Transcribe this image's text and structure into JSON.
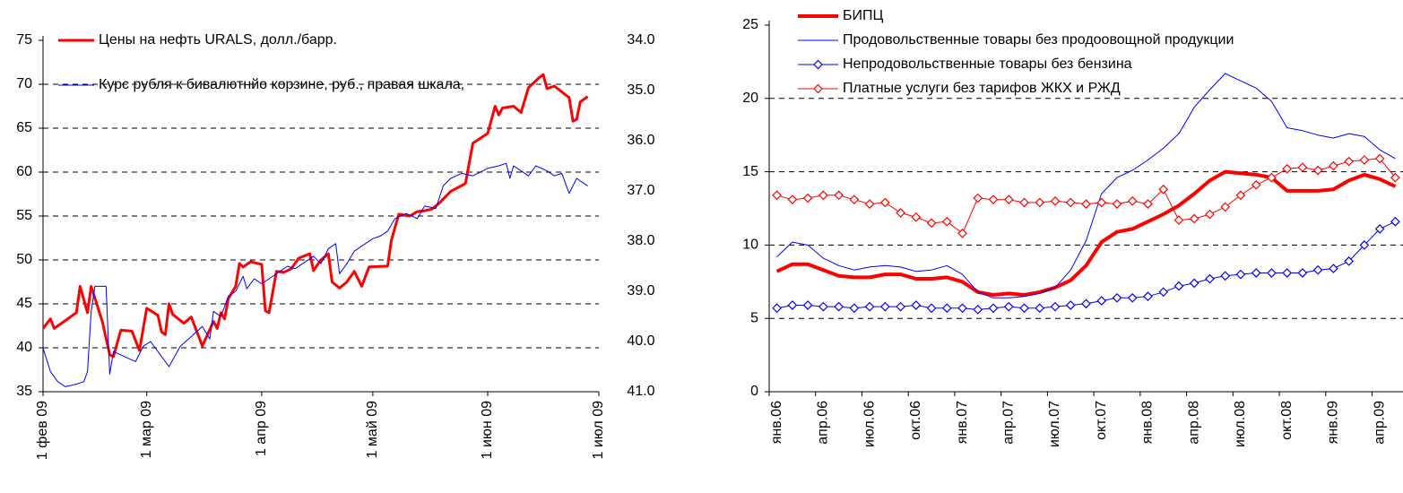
{
  "chart_data": [
    {
      "type": "line",
      "xlim": [
        "2009-02-01",
        "2009-07-01"
      ],
      "xticks": [
        {
          "value": "2009-02-01",
          "label": "1 фев 09"
        },
        {
          "value": "2009-03-01",
          "label": "1 мар 09"
        },
        {
          "value": "2009-04-01",
          "label": "1 апр 09"
        },
        {
          "value": "2009-05-01",
          "label": "1 май 09"
        },
        {
          "value": "2009-06-01",
          "label": "1 июн 09"
        },
        {
          "value": "2009-07-01",
          "label": "1 июл 09"
        }
      ],
      "ylim": [
        35,
        75
      ],
      "yticks": [
        35,
        40,
        45,
        50,
        55,
        60,
        65,
        70,
        75
      ],
      "y2lim": [
        41,
        34
      ],
      "y2ticks": [
        {
          "value": 34,
          "label": "34.0"
        },
        {
          "value": 35,
          "label": "35.0"
        },
        {
          "value": 36,
          "label": "36.0"
        },
        {
          "value": 37,
          "label": "37.0"
        },
        {
          "value": 38,
          "label": "38.0"
        },
        {
          "value": 39,
          "label": "39.0"
        },
        {
          "value": 40,
          "label": "40.0"
        },
        {
          "value": 41,
          "label": "41.0"
        }
      ],
      "grid": true,
      "legend": "top-left",
      "series": [
        {
          "name": "Цены на нефть URALS, долл./барр.",
          "color": "#ff0000",
          "line_width": 3,
          "x": [
            "2009-02-01",
            "2009-02-03",
            "2009-02-04",
            "2009-02-06",
            "2009-02-10",
            "2009-02-11",
            "2009-02-13",
            "2009-02-14",
            "2009-02-17",
            "2009-02-19",
            "2009-02-20",
            "2009-02-22",
            "2009-02-25",
            "2009-02-27",
            "2009-03-01",
            "2009-03-04",
            "2009-03-05",
            "2009-03-06",
            "2009-03-07",
            "2009-03-08",
            "2009-03-11",
            "2009-03-13",
            "2009-03-16",
            "2009-03-19",
            "2009-03-20",
            "2009-03-21",
            "2009-03-22",
            "2009-03-23",
            "2009-03-25",
            "2009-03-26",
            "2009-03-27",
            "2009-03-29",
            "2009-04-01",
            "2009-04-02",
            "2009-04-03",
            "2009-04-05",
            "2009-04-07",
            "2009-04-09",
            "2009-04-11",
            "2009-04-14",
            "2009-04-15",
            "2009-04-17",
            "2009-04-19",
            "2009-04-20",
            "2009-04-22",
            "2009-04-24",
            "2009-04-26",
            "2009-04-28",
            "2009-04-30",
            "2009-05-05",
            "2009-05-06",
            "2009-05-08",
            "2009-05-11",
            "2009-05-13",
            "2009-05-15",
            "2009-05-17",
            "2009-05-19",
            "2009-05-22",
            "2009-05-26",
            "2009-05-28",
            "2009-06-01",
            "2009-06-03",
            "2009-06-04",
            "2009-06-05",
            "2009-06-08",
            "2009-06-10",
            "2009-06-12",
            "2009-06-15",
            "2009-06-16",
            "2009-06-17",
            "2009-06-19",
            "2009-06-22",
            "2009-06-23",
            "2009-06-24",
            "2009-06-25",
            "2009-06-26",
            "2009-06-28"
          ],
          "values": [
            42.2,
            43.3,
            42.2,
            42.8,
            44,
            47,
            44,
            47,
            43,
            39.2,
            39,
            42,
            41.9,
            39.7,
            44.5,
            43.7,
            41.8,
            41.5,
            45,
            43.8,
            42.8,
            43.5,
            40.2,
            43,
            42.2,
            44,
            43.3,
            45.6,
            47,
            49.6,
            49.2,
            49.8,
            49.5,
            44.2,
            44,
            48.7,
            48.6,
            49,
            50.2,
            50.7,
            48.8,
            50,
            50.7,
            47.5,
            46.8,
            47.5,
            48.7,
            47,
            49.2,
            49.3,
            52.2,
            55.2,
            55,
            55.5,
            55.6,
            55.8,
            56.5,
            57.8,
            58.7,
            63.3,
            64.4,
            67.5,
            66.5,
            67.3,
            67.5,
            66.8,
            69.6,
            70.8,
            71.1,
            69.5,
            69.8,
            68.8,
            68.5,
            65.8,
            66,
            68,
            68.6
          ]
        },
        {
          "name": "Курс рубля к бивалютнйо корзине, руб., правая шкала,",
          "color": "#0000ff",
          "line_width": 1,
          "axis": "y2",
          "x": [
            "2009-02-01",
            "2009-02-03",
            "2009-02-05",
            "2009-02-07",
            "2009-02-10",
            "2009-02-12",
            "2009-02-13",
            "2009-02-14",
            "2009-02-15",
            "2009-02-18",
            "2009-02-19",
            "2009-02-20",
            "2009-02-23",
            "2009-02-26",
            "2009-02-28",
            "2009-03-02",
            "2009-03-05",
            "2009-03-07",
            "2009-03-10",
            "2009-03-13",
            "2009-03-16",
            "2009-03-18",
            "2009-03-19",
            "2009-03-21",
            "2009-03-23",
            "2009-03-25",
            "2009-03-27",
            "2009-03-28",
            "2009-03-30",
            "2009-04-01",
            "2009-04-03",
            "2009-04-06",
            "2009-04-08",
            "2009-04-10",
            "2009-04-13",
            "2009-04-15",
            "2009-04-17",
            "2009-04-19",
            "2009-04-21",
            "2009-04-22",
            "2009-04-24",
            "2009-04-26",
            "2009-04-28",
            "2009-05-01",
            "2009-05-03",
            "2009-05-05",
            "2009-05-07",
            "2009-05-10",
            "2009-05-13",
            "2009-05-15",
            "2009-05-18",
            "2009-05-20",
            "2009-05-22",
            "2009-05-25",
            "2009-05-28",
            "2009-06-01",
            "2009-06-04",
            "2009-06-06",
            "2009-06-07",
            "2009-06-08",
            "2009-06-10",
            "2009-06-12",
            "2009-06-14",
            "2009-06-17",
            "2009-06-19",
            "2009-06-21",
            "2009-06-23",
            "2009-06-25",
            "2009-06-27",
            "2009-06-28"
          ],
          "values": [
            40.13,
            40.6,
            40.8,
            40.9,
            40.85,
            40.8,
            40.6,
            39.4,
            38.9,
            38.9,
            40.65,
            40.2,
            40.3,
            40.4,
            40.1,
            40,
            40.3,
            40.5,
            40.1,
            39.9,
            39.7,
            39.95,
            39.4,
            39.5,
            39.1,
            39,
            38.7,
            38.95,
            38.75,
            38.85,
            38.75,
            38.6,
            38.5,
            38.55,
            38.4,
            38.3,
            38.45,
            38.15,
            38.05,
            38.65,
            38.45,
            38.2,
            38.1,
            37.95,
            37.9,
            37.8,
            37.55,
            37.45,
            37.55,
            37.3,
            37.35,
            36.9,
            36.75,
            36.65,
            36.7,
            36.55,
            36.5,
            36.45,
            36.75,
            36.5,
            36.6,
            36.7,
            36.5,
            36.6,
            36.7,
            36.65,
            37.05,
            36.75,
            36.85,
            36.9
          ]
        }
      ]
    },
    {
      "type": "line",
      "categories": [
        "янв.06",
        null,
        null,
        "апр.06",
        null,
        null,
        "июл.06",
        null,
        null,
        "окт.06",
        null,
        null,
        "янв.07",
        null,
        null,
        "апр.07",
        null,
        null,
        "июл.07",
        null,
        null,
        "окт.07",
        null,
        null,
        "янв.08",
        null,
        null,
        "апр.08",
        null,
        null,
        "июл.08",
        null,
        null,
        "окт.08",
        null,
        null,
        "янв.09",
        null,
        null,
        "апр.09",
        null
      ],
      "ylim": [
        0,
        25
      ],
      "yticks": [
        0,
        5,
        10,
        15,
        20,
        25
      ],
      "grid": true,
      "legend": "top-left",
      "series": [
        {
          "name": "БИПЦ",
          "color": "#ff0000",
          "line_width": 4,
          "values": [
            8.2,
            8.7,
            8.7,
            8.3,
            7.9,
            7.8,
            7.8,
            8.0,
            8.0,
            7.7,
            7.7,
            7.8,
            7.5,
            6.8,
            6.6,
            6.7,
            6.6,
            6.8,
            7.1,
            7.6,
            8.6,
            10.2,
            10.9,
            11.1,
            11.6,
            12.1,
            12.7,
            13.5,
            14.4,
            15.0,
            14.9,
            14.8,
            14.6,
            13.7,
            13.7,
            13.7,
            13.8,
            14.4,
            14.8,
            14.5,
            14.0
          ]
        },
        {
          "name": "Продовольственные товары без продоовощной продукции",
          "color": "#0000ff",
          "line_width": 1,
          "values": [
            9.2,
            10.2,
            10.0,
            9.1,
            8.6,
            8.3,
            8.5,
            8.6,
            8.5,
            8.2,
            8.3,
            8.6,
            8.0,
            6.8,
            6.4,
            6.4,
            6.5,
            6.7,
            7.1,
            8.3,
            10.3,
            13.5,
            14.6,
            15.1,
            15.8,
            16.6,
            17.6,
            19.4,
            20.6,
            21.7,
            21.2,
            20.7,
            19.8,
            18.0,
            17.8,
            17.5,
            17.3,
            17.6,
            17.4,
            16.5,
            15.9
          ]
        },
        {
          "name": "Непродовольственные товары без бензина",
          "color": "#0000ff",
          "line_width": 1,
          "marker": "diamond",
          "values": [
            5.7,
            5.9,
            5.9,
            5.8,
            5.8,
            5.7,
            5.8,
            5.8,
            5.8,
            5.9,
            5.7,
            5.7,
            5.7,
            5.6,
            5.7,
            5.8,
            5.7,
            5.7,
            5.8,
            5.9,
            6.0,
            6.2,
            6.4,
            6.4,
            6.5,
            6.8,
            7.2,
            7.4,
            7.7,
            7.9,
            8.0,
            8.1,
            8.1,
            8.1,
            8.1,
            8.3,
            8.4,
            8.9,
            10.0,
            11.1,
            11.6
          ]
        },
        {
          "name": "Платные услуги без тарифов ЖКХ и РЖД",
          "color": "#ff0000",
          "line_width": 1,
          "marker": "diamond",
          "values": [
            13.4,
            13.1,
            13.2,
            13.4,
            13.4,
            13.1,
            12.8,
            12.9,
            12.2,
            11.9,
            11.5,
            11.6,
            10.8,
            13.2,
            13.1,
            13.1,
            12.9,
            12.9,
            13.0,
            12.9,
            12.8,
            12.9,
            12.8,
            13.0,
            12.8,
            13.8,
            11.7,
            11.8,
            12.1,
            12.6,
            13.4,
            14.1,
            14.6,
            15.2,
            15.3,
            15.1,
            15.4,
            15.7,
            15.8,
            15.9,
            14.6
          ]
        }
      ]
    }
  ]
}
